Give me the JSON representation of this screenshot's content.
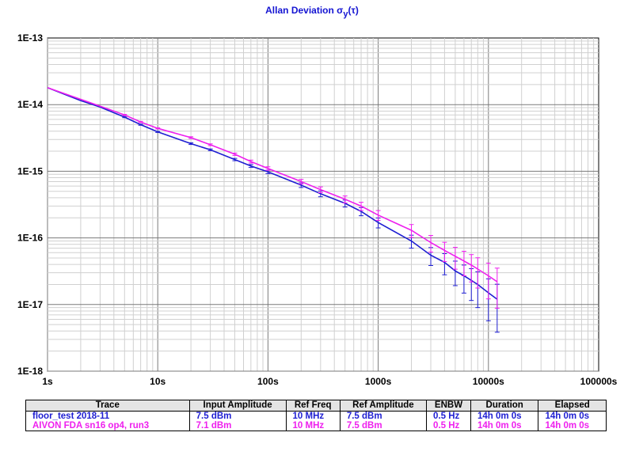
{
  "title_main": "Allan Deviation σ",
  "title_sub": "y",
  "title_tail": "(τ)",
  "chart_data": {
    "type": "line",
    "x_scale": "log",
    "y_scale": "log",
    "xlim": [
      1,
      100000
    ],
    "ylim": [
      1e-18,
      1e-13
    ],
    "grid": true,
    "x_tick_labels": [
      "1s",
      "10s",
      "100s",
      "1000s",
      "10000s",
      "100000s"
    ],
    "y_tick_labels": [
      "1E-13",
      "1E-14",
      "1E-15",
      "1E-16",
      "1E-17",
      "1E-18"
    ],
    "series": [
      {
        "name": "floor_test 2018-11",
        "color": "#1e1ed2",
        "x": [
          1,
          2,
          3,
          5,
          7,
          10,
          20,
          30,
          50,
          70,
          100,
          200,
          300,
          500,
          700,
          1000,
          2000,
          3000,
          4000,
          5000,
          6000,
          7000,
          8000,
          10000,
          12000
        ],
        "y": [
          1.8e-14,
          1.15e-14,
          9.2e-15,
          6.5e-15,
          5e-15,
          3.9e-15,
          2.6e-15,
          2.1e-15,
          1.5e-15,
          1.2e-15,
          9.8e-16,
          6.2e-16,
          4.6e-16,
          3.3e-16,
          2.5e-16,
          1.7e-16,
          9e-17,
          5.5e-17,
          4.3e-17,
          3.2e-17,
          2.7e-17,
          2.3e-17,
          2e-17,
          1.5e-17,
          1.2e-17
        ],
        "err": [
          0,
          0,
          0,
          0.02,
          0.02,
          0.02,
          0.03,
          0.03,
          0.04,
          0.05,
          0.06,
          0.08,
          0.1,
          0.12,
          0.14,
          0.17,
          0.22,
          0.3,
          0.35,
          0.4,
          0.45,
          0.5,
          0.55,
          0.62,
          0.68
        ]
      },
      {
        "name": "AIVON FDA sn16 op4, run3",
        "color": "#ee20ee",
        "x": [
          1,
          2,
          3,
          5,
          7,
          10,
          20,
          30,
          50,
          70,
          100,
          200,
          300,
          500,
          700,
          1000,
          2000,
          3000,
          4000,
          5000,
          6000,
          7000,
          8000,
          10000,
          12000
        ],
        "y": [
          1.8e-14,
          1.2e-14,
          9.5e-15,
          7e-15,
          5.5e-15,
          4.4e-15,
          3.2e-15,
          2.5e-15,
          1.8e-15,
          1.4e-15,
          1.1e-15,
          7e-16,
          5.3e-16,
          3.8e-16,
          3e-16,
          2.2e-16,
          1.3e-16,
          8.5e-17,
          6.5e-17,
          5.3e-17,
          4.5e-17,
          3.9e-17,
          3.4e-17,
          2.7e-17,
          2.2e-17
        ],
        "err": [
          0,
          0,
          0,
          0.02,
          0.02,
          0.02,
          0.03,
          0.03,
          0.04,
          0.05,
          0.06,
          0.08,
          0.1,
          0.12,
          0.14,
          0.17,
          0.22,
          0.28,
          0.32,
          0.36,
          0.4,
          0.44,
          0.48,
          0.55,
          0.6
        ]
      }
    ]
  },
  "table": {
    "headers": [
      "Trace",
      "Input Amplitude",
      "Ref Freq",
      "Ref Amplitude",
      "ENBW",
      "Duration",
      "Elapsed"
    ],
    "rows": [
      {
        "color": "#1e1ed2",
        "cells": [
          "floor_test 2018-11",
          "7.5 dBm",
          "10 MHz",
          "7.5 dBm",
          "0.5 Hz",
          "14h 0m 0s",
          "14h 0m 0s"
        ]
      },
      {
        "color": "#ee20ee",
        "cells": [
          "AIVON FDA sn16 op4, run3",
          "7.1 dBm",
          "10 MHz",
          "7.5 dBm",
          "0.5 Hz",
          "14h 0m 0s",
          "14h 0m 0s"
        ]
      }
    ]
  }
}
